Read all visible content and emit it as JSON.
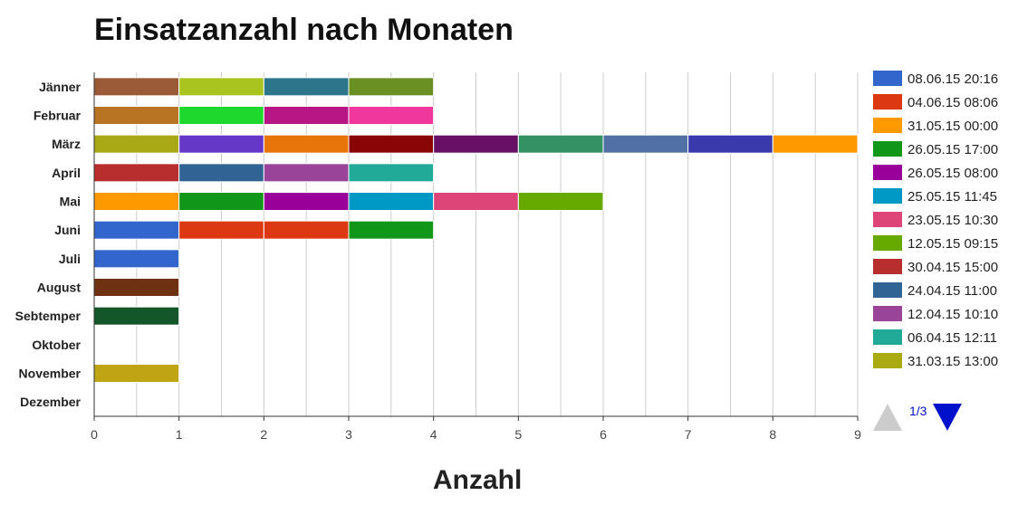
{
  "chart_data": {
    "type": "bar",
    "orientation": "horizontal",
    "stacked": true,
    "title": "Einsatzanzahl nach Monaten",
    "xlabel": "Anzahl",
    "ylabel": "",
    "xlim": [
      0,
      9
    ],
    "x_ticks": [
      "0",
      "1",
      "2",
      "3",
      "4",
      "5",
      "6",
      "7",
      "8",
      "9"
    ],
    "grid": "vertical",
    "legend_position": "right",
    "categories": [
      "Jänner",
      "Februar",
      "März",
      "April",
      "Mai",
      "Juni",
      "Juli",
      "August",
      "Sebtemper",
      "Oktober",
      "November",
      "Dezember"
    ],
    "stacks": [
      {
        "category": "Jänner",
        "segments": [
          {
            "value": 1,
            "color": "#9b5a38"
          },
          {
            "value": 1,
            "color": "#a9c41e"
          },
          {
            "value": 1,
            "color": "#2c758b"
          },
          {
            "value": 1,
            "color": "#6a8f22"
          }
        ]
      },
      {
        "category": "Februar",
        "segments": [
          {
            "value": 1,
            "color": "#b87323"
          },
          {
            "value": 1,
            "color": "#1ed82e"
          },
          {
            "value": 1,
            "color": "#b81585"
          },
          {
            "value": 1,
            "color": "#f0379d"
          }
        ]
      },
      {
        "category": "März",
        "segments": [
          {
            "value": 1,
            "color": "#a9a915"
          },
          {
            "value": 1,
            "color": "#6638c8"
          },
          {
            "value": 1,
            "color": "#e8750a"
          },
          {
            "value": 1,
            "color": "#8a0606"
          },
          {
            "value": 1,
            "color": "#671065"
          },
          {
            "value": 1,
            "color": "#339163"
          },
          {
            "value": 1,
            "color": "#5170a6"
          },
          {
            "value": 1,
            "color": "#3a3aac"
          },
          {
            "value": 1,
            "color": "#ff9900"
          }
        ]
      },
      {
        "category": "April",
        "segments": [
          {
            "value": 1,
            "color": "#b82e2e"
          },
          {
            "value": 1,
            "color": "#316395"
          },
          {
            "value": 1,
            "color": "#994499"
          },
          {
            "value": 1,
            "color": "#22aa99"
          }
        ]
      },
      {
        "category": "Mai",
        "segments": [
          {
            "value": 1,
            "color": "#ff9900"
          },
          {
            "value": 1,
            "color": "#109618"
          },
          {
            "value": 1,
            "color": "#990099"
          },
          {
            "value": 1,
            "color": "#0099c6"
          },
          {
            "value": 1,
            "color": "#dd4477"
          },
          {
            "value": 1,
            "color": "#66aa00"
          }
        ]
      },
      {
        "category": "Juni",
        "segments": [
          {
            "value": 1,
            "color": "#3366cc"
          },
          {
            "value": 1,
            "color": "#dc3912"
          },
          {
            "value": 1,
            "color": "#dc3912"
          },
          {
            "value": 1,
            "color": "#109618"
          }
        ]
      },
      {
        "category": "Juli",
        "segments": [
          {
            "value": 1,
            "color": "#3366cc"
          }
        ]
      },
      {
        "category": "August",
        "segments": [
          {
            "value": 1,
            "color": "#6e3212"
          }
        ]
      },
      {
        "category": "Sebtemper",
        "segments": [
          {
            "value": 1,
            "color": "#12562a"
          }
        ]
      },
      {
        "category": "Oktober",
        "segments": []
      },
      {
        "category": "November",
        "segments": [
          {
            "value": 1,
            "color": "#bfa514"
          }
        ]
      },
      {
        "category": "Dezember",
        "segments": []
      }
    ],
    "legend": [
      {
        "label": "08.06.15 20:16",
        "color": "#3366cc"
      },
      {
        "label": "04.06.15 08:06",
        "color": "#dc3912"
      },
      {
        "label": "31.05.15 00:00",
        "color": "#ff9900"
      },
      {
        "label": "26.05.15 17:00",
        "color": "#109618"
      },
      {
        "label": "26.05.15 08:00",
        "color": "#990099"
      },
      {
        "label": "25.05.15 11:45",
        "color": "#0099c6"
      },
      {
        "label": "23.05.15 10:30",
        "color": "#dd4477"
      },
      {
        "label": "12.05.15 09:15",
        "color": "#66aa00"
      },
      {
        "label": "30.04.15 15:00",
        "color": "#b82e2e"
      },
      {
        "label": "24.04.15 11:00",
        "color": "#316395"
      },
      {
        "label": "12.04.15 10:10",
        "color": "#994499"
      },
      {
        "label": "06.04.15 12:11",
        "color": "#22aa99"
      },
      {
        "label": "31.03.15 13:00",
        "color": "#aaaa11"
      }
    ]
  },
  "legend_pager": {
    "page_text": "1/3"
  }
}
